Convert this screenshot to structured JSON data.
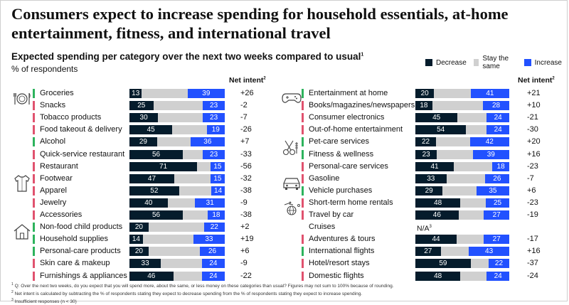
{
  "title": "Consumers expect to increase spending for household essentials, at-home entertainment, fitness, and international travel",
  "subtitle": "Expected spending per category over the next two weeks compared to usual",
  "subtitle_note": "1",
  "respondents_label": "% of respondents",
  "net_intent_label": "Net intent",
  "net_intent_note": "2",
  "legend": [
    {
      "label": "Decrease",
      "color": "#051c2c"
    },
    {
      "label": "Stay the same",
      "color": "#d0d0d0"
    },
    {
      "label": "Increase",
      "color": "#2251ff"
    }
  ],
  "colors": {
    "essential": "#2db35d",
    "discretionary": "#e0526e"
  },
  "icons": {
    "left": [
      "food-icon",
      "clothing-icon",
      "house-icon"
    ],
    "right": [
      "gamepad-icon",
      "scissors-icon",
      "car-icon",
      "travel-icon"
    ]
  },
  "chart_data": {
    "type": "bar",
    "orientation": "horizontal",
    "stacked": true,
    "segments": [
      "Decrease",
      "Stay the same",
      "Increase"
    ],
    "panels": [
      {
        "name": "left",
        "rows": [
          {
            "label": "Groceries",
            "decrease": 13,
            "increase": 39,
            "net": "+26",
            "group": "essential"
          },
          {
            "label": "Snacks",
            "decrease": 25,
            "increase": 23,
            "net": "-2",
            "group": "discretionary"
          },
          {
            "label": "Tobacco products",
            "decrease": 30,
            "increase": 23,
            "net": "-7",
            "group": "discretionary"
          },
          {
            "label": "Food takeout & delivery",
            "decrease": 45,
            "increase": 19,
            "net": "-26",
            "group": "discretionary"
          },
          {
            "label": "Alcohol",
            "decrease": 29,
            "increase": 36,
            "net": "+7",
            "group": "essential"
          },
          {
            "label": "Quick-service restaurant",
            "decrease": 56,
            "increase": 23,
            "net": "-33",
            "group": "discretionary"
          },
          {
            "label": "Restaurant",
            "decrease": 71,
            "increase": 15,
            "net": "-56",
            "group": "discretionary"
          },
          {
            "label": "Footwear",
            "decrease": 47,
            "increase": 15,
            "net": "-32",
            "group": "discretionary"
          },
          {
            "label": "Apparel",
            "decrease": 52,
            "increase": 14,
            "net": "-38",
            "group": "discretionary"
          },
          {
            "label": "Jewelry",
            "decrease": 40,
            "increase": 31,
            "net": "-9",
            "group": "discretionary"
          },
          {
            "label": "Accessories",
            "decrease": 56,
            "increase": 18,
            "net": "-38",
            "group": "discretionary"
          },
          {
            "label": "Non-food child products",
            "decrease": 20,
            "increase": 22,
            "net": "+2",
            "group": "essential"
          },
          {
            "label": "Household supplies",
            "decrease": 14,
            "increase": 33,
            "net": "+19",
            "group": "essential"
          },
          {
            "label": "Personal-care products",
            "decrease": 20,
            "increase": 26,
            "net": "+6",
            "group": "essential"
          },
          {
            "label": "Skin care & makeup",
            "decrease": 33,
            "increase": 24,
            "net": "-9",
            "group": "discretionary"
          },
          {
            "label": "Furnishings & appliances",
            "decrease": 46,
            "increase": 24,
            "net": "-22",
            "group": "discretionary"
          }
        ]
      },
      {
        "name": "right",
        "rows": [
          {
            "label": "Entertainment at home",
            "decrease": 20,
            "increase": 41,
            "net": "+21",
            "group": "essential"
          },
          {
            "label": "Books/magazines/newspapers",
            "decrease": 18,
            "increase": 28,
            "net": "+10",
            "group": "discretionary"
          },
          {
            "label": "Consumer electronics",
            "decrease": 45,
            "increase": 24,
            "net": "-21",
            "group": "discretionary"
          },
          {
            "label": "Out-of-home entertainment",
            "decrease": 54,
            "increase": 24,
            "net": "-30",
            "group": "discretionary"
          },
          {
            "label": "Pet-care services",
            "decrease": 22,
            "increase": 42,
            "net": "+20",
            "group": "essential"
          },
          {
            "label": "Fitness & wellness",
            "decrease": 23,
            "increase": 39,
            "net": "+16",
            "group": "essential"
          },
          {
            "label": "Personal-care services",
            "decrease": 41,
            "increase": 18,
            "net": "-23",
            "group": "discretionary"
          },
          {
            "label": "Gasoline",
            "decrease": 33,
            "increase": 26,
            "net": "-7",
            "group": "discretionary"
          },
          {
            "label": "Vehicle purchases",
            "decrease": 29,
            "increase": 35,
            "net": "+6",
            "group": "essential"
          },
          {
            "label": "Short-term home rentals",
            "decrease": 48,
            "increase": 25,
            "net": "-23",
            "group": "discretionary"
          },
          {
            "label": "Travel by car",
            "decrease": 46,
            "increase": 27,
            "net": "-19",
            "group": "discretionary"
          },
          {
            "label": "Cruises",
            "decrease": null,
            "increase": null,
            "net": "",
            "na_text": "N/A",
            "na_note": "3",
            "group": "none"
          },
          {
            "label": "Adventures & tours",
            "decrease": 44,
            "increase": 27,
            "net": "-17",
            "group": "discretionary"
          },
          {
            "label": "International flights",
            "decrease": 27,
            "increase": 43,
            "net": "+16",
            "group": "essential"
          },
          {
            "label": "Hotel/resort stays",
            "decrease": 59,
            "increase": 22,
            "net": "-37",
            "group": "discretionary"
          },
          {
            "label": "Domestic flights",
            "decrease": 48,
            "increase": 24,
            "net": "-24",
            "group": "discretionary"
          }
        ]
      }
    ]
  },
  "footnotes": [
    {
      "mark": "1",
      "text": "Q: Over the next two weeks, do you expect that you will spend more, about the same, or less money on these categories than usual? Figures may not sum to 100% because of rounding."
    },
    {
      "mark": "2",
      "text": "Net intent is calculated by subtracting the % of respondents stating they expect to decrease spending from the % of respondents stating they expect to increase spending."
    },
    {
      "mark": "3",
      "text": "Insufficient responses (n < 30)"
    }
  ]
}
